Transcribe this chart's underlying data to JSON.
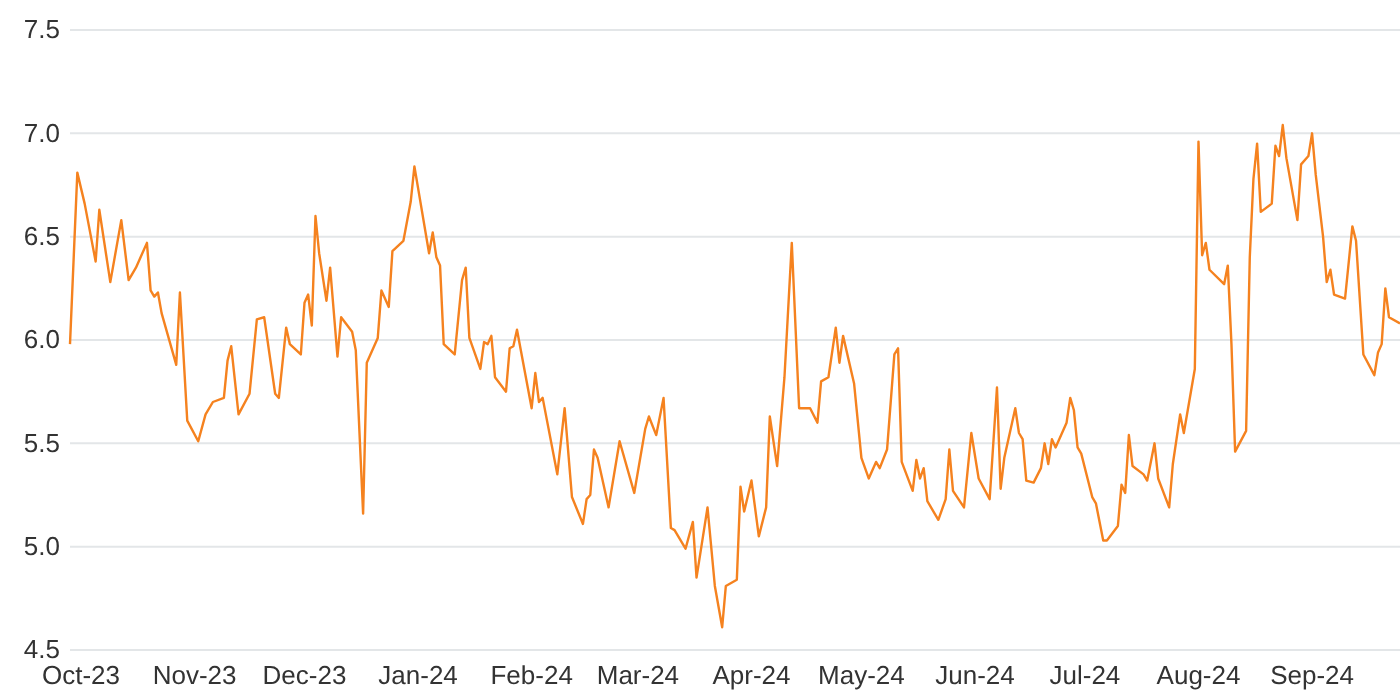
{
  "chart_data": {
    "type": "line",
    "xlim": [
      "2023-09-28",
      "2024-09-25"
    ],
    "xticks": [
      {
        "value": "2023-10-01",
        "label": "Oct-23"
      },
      {
        "value": "2023-11-01",
        "label": "Nov-23"
      },
      {
        "value": "2023-12-01",
        "label": "Dec-23"
      },
      {
        "value": "2024-01-01",
        "label": "Jan-24"
      },
      {
        "value": "2024-02-01",
        "label": "Feb-24"
      },
      {
        "value": "2024-03-01",
        "label": "Mar-24"
      },
      {
        "value": "2024-04-01",
        "label": "Apr-24"
      },
      {
        "value": "2024-05-01",
        "label": "May-24"
      },
      {
        "value": "2024-06-01",
        "label": "Jun-24"
      },
      {
        "value": "2024-07-01",
        "label": "Jul-24"
      },
      {
        "value": "2024-08-01",
        "label": "Aug-24"
      },
      {
        "value": "2024-09-01",
        "label": "Sep-24"
      }
    ],
    "ylim": [
      4.5,
      7.5
    ],
    "yticks": [
      {
        "value": 4.5,
        "label": "4.5"
      },
      {
        "value": 5,
        "label": "5.0"
      },
      {
        "value": 5.5,
        "label": "5.5"
      },
      {
        "value": 6,
        "label": "6.0"
      },
      {
        "value": 6.5,
        "label": "6.5"
      },
      {
        "value": 7,
        "label": "7.0"
      },
      {
        "value": 7.5,
        "label": "7.5"
      }
    ],
    "grid": "y",
    "marker": "none",
    "line_style": "solid",
    "series": [
      {
        "color": "#f5821f",
        "x": [
          "2023-09-28",
          "2023-09-30",
          "2023-10-02",
          "2023-10-05",
          "2023-10-06",
          "2023-10-09",
          "2023-10-12",
          "2023-10-14",
          "2023-10-16",
          "2023-10-19",
          "2023-10-20",
          "2023-10-21",
          "2023-10-22",
          "2023-10-23",
          "2023-10-27",
          "2023-10-28",
          "2023-10-30",
          "2023-11-02",
          "2023-11-04",
          "2023-11-06",
          "2023-11-09",
          "2023-11-10",
          "2023-11-11",
          "2023-11-13",
          "2023-11-16",
          "2023-11-18",
          "2023-11-20",
          "2023-11-23",
          "2023-11-24",
          "2023-11-26",
          "2023-11-27",
          "2023-11-30",
          "2023-12-01",
          "2023-12-02",
          "2023-12-03",
          "2023-12-04",
          "2023-12-05",
          "2023-12-07",
          "2023-12-08",
          "2023-12-10",
          "2023-12-11",
          "2023-12-14",
          "2023-12-15",
          "2023-12-17",
          "2023-12-18",
          "2023-12-21",
          "2023-12-22",
          "2023-12-24",
          "2023-12-25",
          "2023-12-28",
          "2023-12-30",
          "2023-12-31",
          "2024-01-04",
          "2024-01-05",
          "2024-01-06",
          "2024-01-07",
          "2024-01-08",
          "2024-01-11",
          "2024-01-13",
          "2024-01-14",
          "2024-01-15",
          "2024-01-18",
          "2024-01-19",
          "2024-01-20",
          "2024-01-21",
          "2024-01-22",
          "2024-01-25",
          "2024-01-26",
          "2024-01-27",
          "2024-01-28",
          "2024-02-01",
          "2024-02-02",
          "2024-02-03",
          "2024-02-04",
          "2024-02-08",
          "2024-02-10",
          "2024-02-12",
          "2024-02-15",
          "2024-02-16",
          "2024-02-17",
          "2024-02-18",
          "2024-02-19",
          "2024-02-22",
          "2024-02-25",
          "2024-02-29",
          "2024-03-03",
          "2024-03-04",
          "2024-03-06",
          "2024-03-08",
          "2024-03-10",
          "2024-03-11",
          "2024-03-14",
          "2024-03-16",
          "2024-03-17",
          "2024-03-20",
          "2024-03-22",
          "2024-03-24",
          "2024-03-25",
          "2024-03-28",
          "2024-03-29",
          "2024-03-30",
          "2024-04-01",
          "2024-04-03",
          "2024-04-05",
          "2024-04-06",
          "2024-04-08",
          "2024-04-10",
          "2024-04-12",
          "2024-04-14",
          "2024-04-17",
          "2024-04-19",
          "2024-04-20",
          "2024-04-22",
          "2024-04-24",
          "2024-04-25",
          "2024-04-26",
          "2024-04-29",
          "2024-05-01",
          "2024-05-03",
          "2024-05-05",
          "2024-05-06",
          "2024-05-08",
          "2024-05-10",
          "2024-05-11",
          "2024-05-12",
          "2024-05-15",
          "2024-05-16",
          "2024-05-17",
          "2024-05-18",
          "2024-05-19",
          "2024-05-22",
          "2024-05-24",
          "2024-05-25",
          "2024-05-26",
          "2024-05-29",
          "2024-05-31",
          "2024-06-02",
          "2024-06-05",
          "2024-06-07",
          "2024-06-08",
          "2024-06-09",
          "2024-06-12",
          "2024-06-13",
          "2024-06-14",
          "2024-06-15",
          "2024-06-17",
          "2024-06-19",
          "2024-06-20",
          "2024-06-21",
          "2024-06-22",
          "2024-06-23",
          "2024-06-26",
          "2024-06-27",
          "2024-06-28",
          "2024-06-29",
          "2024-06-30",
          "2024-07-03",
          "2024-07-04",
          "2024-07-06",
          "2024-07-07",
          "2024-07-10",
          "2024-07-11",
          "2024-07-12",
          "2024-07-13",
          "2024-07-14",
          "2024-07-17",
          "2024-07-18",
          "2024-07-20",
          "2024-07-21",
          "2024-07-24",
          "2024-07-25",
          "2024-07-27",
          "2024-07-28",
          "2024-07-31",
          "2024-08-01",
          "2024-08-02",
          "2024-08-03",
          "2024-08-04",
          "2024-08-08",
          "2024-08-09",
          "2024-08-10",
          "2024-08-11",
          "2024-08-14",
          "2024-08-15",
          "2024-08-16",
          "2024-08-17",
          "2024-08-18",
          "2024-08-21",
          "2024-08-22",
          "2024-08-23",
          "2024-08-24",
          "2024-08-25",
          "2024-08-28",
          "2024-08-29",
          "2024-08-31",
          "2024-09-01",
          "2024-09-02",
          "2024-09-04",
          "2024-09-05",
          "2024-09-06",
          "2024-09-07",
          "2024-09-10",
          "2024-09-12",
          "2024-09-13",
          "2024-09-15",
          "2024-09-18",
          "2024-09-19",
          "2024-09-20",
          "2024-09-21",
          "2024-09-22",
          "2024-09-25"
        ],
        "values": [
          5.98,
          6.81,
          6.66,
          6.38,
          6.63,
          6.28,
          6.58,
          6.29,
          6.35,
          6.47,
          6.24,
          6.21,
          6.23,
          6.13,
          5.88,
          6.23,
          5.61,
          5.51,
          5.64,
          5.7,
          5.72,
          5.9,
          5.97,
          5.64,
          5.74,
          6.1,
          6.11,
          5.74,
          5.72,
          6.06,
          5.98,
          5.93,
          6.18,
          6.22,
          6.07,
          6.6,
          6.42,
          6.19,
          6.35,
          5.92,
          6.11,
          6.04,
          5.95,
          5.16,
          5.89,
          6.01,
          6.24,
          6.16,
          6.43,
          6.48,
          6.67,
          6.84,
          6.42,
          6.52,
          6.4,
          6.36,
          5.98,
          5.93,
          6.29,
          6.35,
          6.01,
          5.86,
          5.99,
          5.98,
          6.02,
          5.82,
          5.75,
          5.96,
          5.97,
          6.05,
          5.67,
          5.84,
          5.7,
          5.72,
          5.35,
          5.67,
          5.24,
          5.11,
          5.23,
          5.25,
          5.47,
          5.43,
          5.19,
          5.51,
          5.26,
          5.57,
          5.63,
          5.54,
          5.72,
          5.09,
          5.08,
          4.99,
          5.12,
          4.85,
          5.19,
          4.81,
          4.61,
          4.81,
          4.84,
          5.29,
          5.17,
          5.32,
          5.05,
          5.19,
          5.63,
          5.39,
          5.82,
          6.47,
          5.67,
          5.67,
          5.6,
          5.8,
          5.82,
          6.06,
          5.89,
          6.02,
          5.79,
          5.43,
          5.33,
          5.41,
          5.38,
          5.47,
          5.93,
          5.96,
          5.41,
          5.27,
          5.42,
          5.33,
          5.38,
          5.22,
          5.13,
          5.23,
          5.47,
          5.27,
          5.19,
          5.55,
          5.33,
          5.23,
          5.77,
          5.28,
          5.43,
          5.67,
          5.55,
          5.52,
          5.32,
          5.31,
          5.38,
          5.5,
          5.4,
          5.52,
          5.48,
          5.6,
          5.72,
          5.66,
          5.48,
          5.45,
          5.24,
          5.21,
          5.03,
          5.03,
          5.1,
          5.3,
          5.26,
          5.54,
          5.39,
          5.35,
          5.32,
          5.5,
          5.33,
          5.19,
          5.4,
          5.64,
          5.55,
          5.86,
          6.96,
          6.41,
          6.47,
          6.34,
          6.27,
          6.36,
          5.98,
          5.46,
          5.56,
          6.4,
          6.78,
          6.95,
          6.62,
          6.66,
          6.94,
          6.89,
          7.04,
          6.88,
          6.58,
          6.85,
          6.89,
          7.0,
          6.8,
          6.5,
          6.28,
          6.34,
          6.22,
          6.2,
          6.55,
          6.48,
          5.93,
          5.83,
          5.94,
          5.98,
          6.25,
          6.11,
          6.08
        ]
      }
    ]
  }
}
